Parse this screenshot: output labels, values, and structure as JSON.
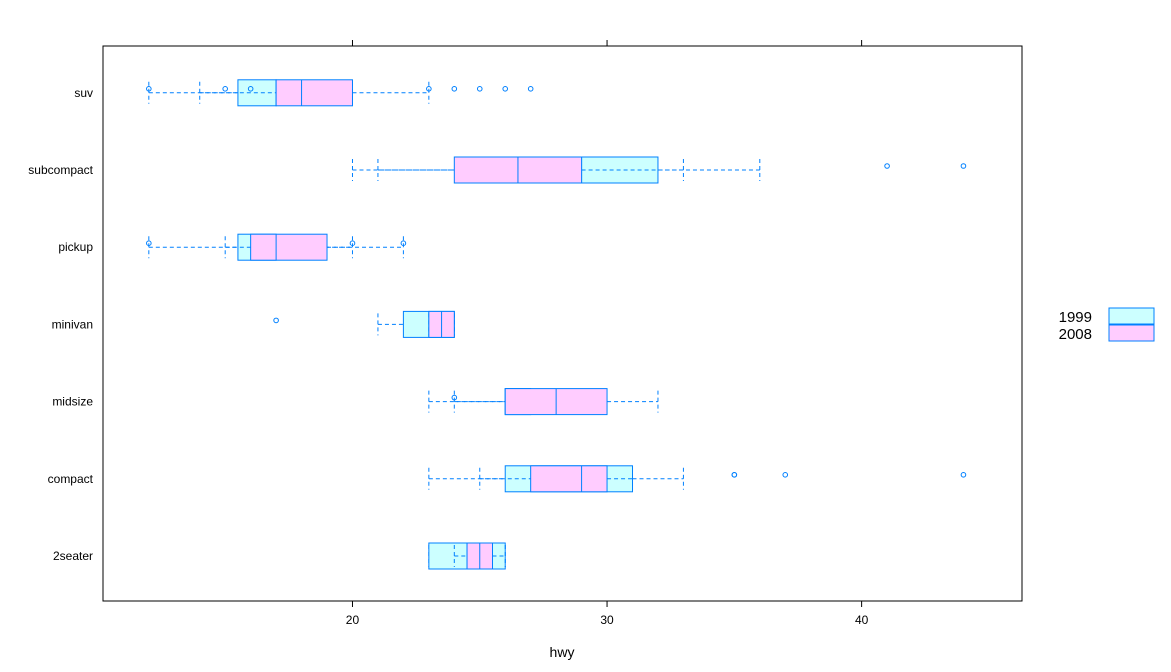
{
  "chart_data": {
    "type": "boxplot",
    "xlabel": "hwy",
    "ylabel": "",
    "xlim": [
      10.2,
      46.3
    ],
    "x_ticks": [
      20,
      30,
      40
    ],
    "categories": [
      "2seater",
      "compact",
      "midsize",
      "minivan",
      "pickup",
      "subcompact",
      "suv"
    ],
    "legend": {
      "placement": "right",
      "entries": [
        "1999",
        "2008"
      ]
    },
    "colors": {
      "stroke": "#0080ff",
      "box_1999": "#ccffff",
      "box_2008": "#ffccff",
      "frame": "#000000"
    },
    "series": [
      {
        "name": "1999",
        "boxes": [
          {
            "category": "2seater",
            "whisker_low": 23,
            "q1": 23,
            "median": 24.5,
            "q3": 26,
            "whisker_high": 26,
            "outliers": []
          },
          {
            "category": "compact",
            "whisker_low": 23,
            "q1": 26,
            "median": 29,
            "q3": 31,
            "whisker_high": 33,
            "outliers": [
              35,
              37,
              44
            ]
          },
          {
            "category": "midsize",
            "whisker_low": 24,
            "q1": 26,
            "median": 26,
            "q3": 27,
            "whisker_high": 29,
            "outliers": []
          },
          {
            "category": "minivan",
            "whisker_low": 21,
            "q1": 22,
            "median": 23,
            "q3": 24,
            "whisker_high": 24,
            "outliers": [
              17
            ]
          },
          {
            "category": "pickup",
            "whisker_low": 15,
            "q1": 15.5,
            "median": 16.5,
            "q3": 17,
            "whisker_high": 20,
            "outliers": [
              12,
              20,
              22
            ]
          },
          {
            "category": "subcompact",
            "whisker_low": 21,
            "q1": 25,
            "median": 29,
            "q3": 32,
            "whisker_high": 36,
            "outliers": [
              41,
              44
            ]
          },
          {
            "category": "suv",
            "whisker_low": 14,
            "q1": 15.5,
            "median": 17,
            "q3": 17,
            "whisker_high": 20,
            "outliers": [
              12,
              23,
              25,
              27
            ]
          }
        ]
      },
      {
        "name": "2008",
        "boxes": [
          {
            "category": "2seater",
            "whisker_low": 24,
            "q1": 24.5,
            "median": 25,
            "q3": 25.5,
            "whisker_high": 26,
            "outliers": []
          },
          {
            "category": "compact",
            "whisker_low": 25,
            "q1": 27,
            "median": 29,
            "q3": 30,
            "whisker_high": 31,
            "outliers": [
              35
            ]
          },
          {
            "category": "midsize",
            "whisker_low": 23,
            "q1": 26,
            "median": 28,
            "q3": 30,
            "whisker_high": 32,
            "outliers": [
              24
            ]
          },
          {
            "category": "minivan",
            "whisker_low": 23,
            "q1": 23,
            "median": 23.5,
            "q3": 24,
            "whisker_high": 24,
            "outliers": []
          },
          {
            "category": "pickup",
            "whisker_low": 12,
            "q1": 16,
            "median": 17,
            "q3": 19,
            "whisker_high": 22,
            "outliers": []
          },
          {
            "category": "subcompact",
            "whisker_low": 20,
            "q1": 24,
            "median": 26.5,
            "q3": 29,
            "whisker_high": 33,
            "outliers": []
          },
          {
            "category": "suv",
            "whisker_low": 12,
            "q1": 17,
            "median": 18,
            "q3": 20,
            "whisker_high": 23,
            "outliers": [
              15,
              16,
              24,
              26
            ]
          }
        ]
      }
    ]
  }
}
